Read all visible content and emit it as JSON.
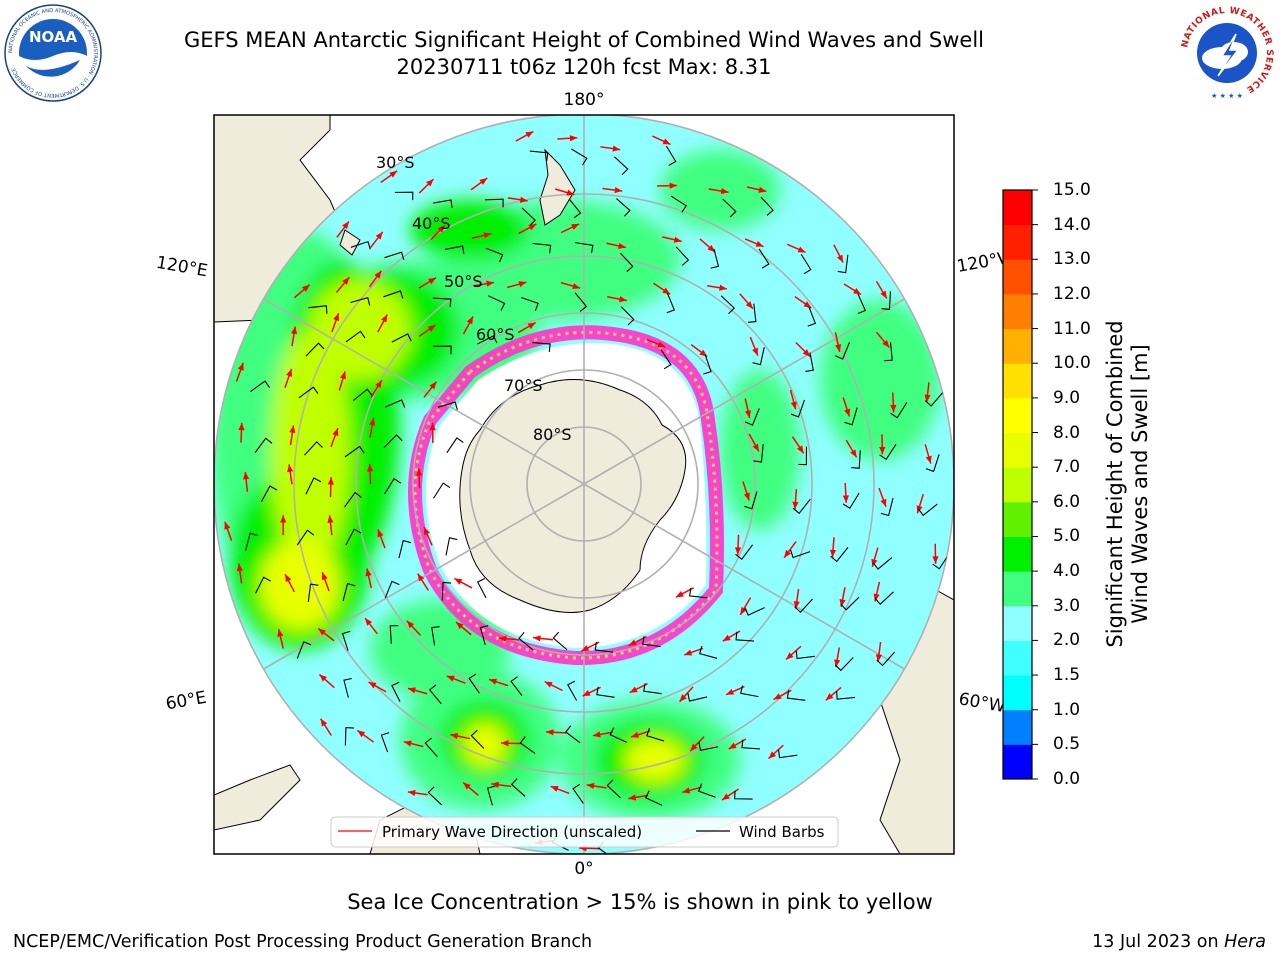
{
  "header": {
    "title_line1": "GEFS MEAN Antarctic Significant Height of Combined Wind Waves and Swell",
    "title_line2": "20230711 t06z 120h fcst   Max: 8.31"
  },
  "logos": {
    "noaa_text": "NOAA",
    "noaa_ring_text": "NATIONAL OCEANIC AND ATMOSPHERIC ADMINISTRATION · U.S. DEPARTMENT OF COMMERCE",
    "nws_ring_text": "NATIONAL WEATHER SERVICE"
  },
  "map": {
    "projection": "south-polar-stereographic",
    "longitude_labels": {
      "top": "180°",
      "bottom": "0°",
      "left_upper": "120°E",
      "left_lower": "60°E",
      "right_upper": "120°W",
      "right_lower": "60°W"
    },
    "latitude_labels": [
      "30°S",
      "40°S",
      "50°S",
      "60°S",
      "70°S",
      "80°S"
    ],
    "legend": {
      "primary_wave": "Primary Wave Direction (unscaled)",
      "wind_barbs": "Wind Barbs",
      "primary_wave_color": "#ff0000",
      "wind_barbs_color": "#000000"
    },
    "colors": {
      "ocean_low": "#90ffff",
      "land": "#efecdc",
      "ice_edge": "#ff33cc"
    }
  },
  "colorbar": {
    "title_line1": "Significant Height of Combined",
    "title_line2": "Wind Waves and Swell [m]",
    "ticks": [
      "0.0",
      "0.5",
      "1.0",
      "1.5",
      "2.0",
      "3.0",
      "4.0",
      "5.0",
      "6.0",
      "7.0",
      "8.0",
      "9.0",
      "10.0",
      "11.0",
      "12.0",
      "13.0",
      "14.0",
      "15.0"
    ],
    "colors": [
      "#0000ff",
      "#0080ff",
      "#00ffff",
      "#40ffff",
      "#90ffff",
      "#40ff80",
      "#00f000",
      "#60f000",
      "#c0ff00",
      "#e8ff00",
      "#ffff00",
      "#ffe000",
      "#ffb000",
      "#ff8000",
      "#ff5000",
      "#ff2000",
      "#ff0000"
    ]
  },
  "caption": "Sea Ice Concentration > 15% is shown in pink to yellow",
  "footer": {
    "left": "NCEP/EMC/Verification Post Processing Product Generation Branch",
    "right_prefix": "13 Jul 2023 on ",
    "right_italic": "Hera"
  }
}
